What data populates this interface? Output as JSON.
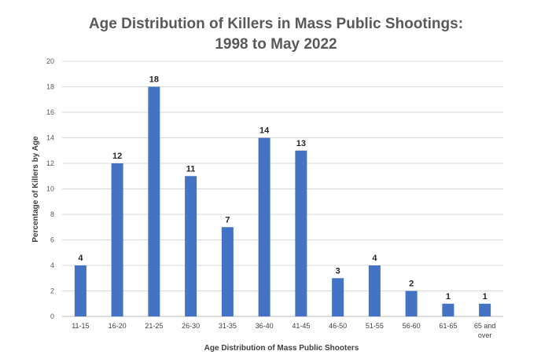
{
  "chart_data": {
    "type": "bar",
    "title_lines": [
      "Age Distribution of Killers in Mass Public Shootings:",
      "1998 to May 2022"
    ],
    "xlabel": "Age Distribution of Mass Public Shooters",
    "ylabel": "Percentage of Killers by Age",
    "categories": [
      [
        "11-15"
      ],
      [
        "16-20"
      ],
      [
        "21-25"
      ],
      [
        "26-30"
      ],
      [
        "31-35"
      ],
      [
        "36-40"
      ],
      [
        "41-45"
      ],
      [
        "46-50"
      ],
      [
        "51-55"
      ],
      [
        "56-60"
      ],
      [
        "61-65"
      ],
      [
        "65 and",
        "over"
      ]
    ],
    "values": [
      4,
      12,
      18,
      11,
      7,
      14,
      13,
      3,
      4,
      2,
      1,
      1
    ],
    "data_labels": [
      "4",
      "12",
      "18",
      "11",
      "7",
      "14",
      "13",
      "3",
      "4",
      "2",
      "1",
      "1"
    ],
    "ylim": [
      0,
      20
    ],
    "yticks": [
      "0",
      "2",
      "4",
      "6",
      "8",
      "10",
      "12",
      "14",
      "16",
      "18",
      "20"
    ],
    "grid": true,
    "legend": "none",
    "bar_color": "#4472C4",
    "grid_color": "#D9D9D9",
    "axis_color": "#BFBFBF"
  }
}
